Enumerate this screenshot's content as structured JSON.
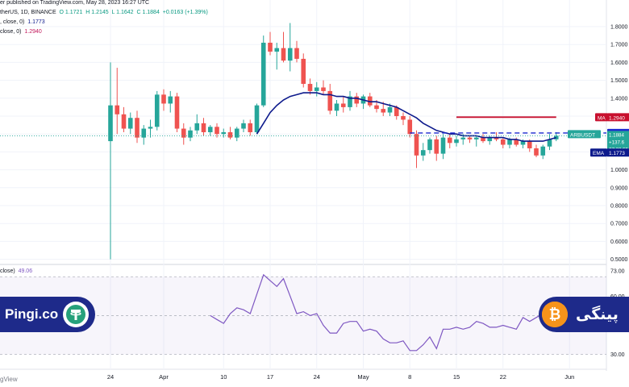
{
  "header": {
    "published_text": "er published on TradingView.com, May 28, 2023 16:27 UTC",
    "symbol_text": "therUS, 1D, BINANCE",
    "ohlc": {
      "o": "O 1.1721",
      "h": "H 1.2145",
      "l": "L 1.1642",
      "c": "C 1.1884",
      "chg": "+0.0163 (+1.39%)"
    },
    "ema_legend": ", close, 0)",
    "ema_value": "1.1773",
    "ma_legend": "close, 0)",
    "ma_value": "1.2940",
    "rsi_legend": "close)",
    "rsi_value": "49.06"
  },
  "brand": {
    "left_text": "Pingi.co",
    "right_text": "پینگی",
    "colors": {
      "brand_blue": "#1e2a8a",
      "tether": "#26a17b",
      "bitcoin": "#f7931a"
    }
  },
  "footer": {
    "text": "gView"
  },
  "colors": {
    "up": "#26a69a",
    "down": "#ef5350",
    "ema": "#0d1a8c",
    "ma": "#c8102e",
    "rsi": "#7e57c2",
    "price_line": "#1e2ad0"
  },
  "chart_data": [
    {
      "type": "candlestick",
      "title": "ARBUSDT, 1D, BINANCE",
      "ylim": [
        0.45,
        1.86
      ],
      "y_ticks": [
        "1.8000",
        "1.7000",
        "1.6000",
        "1.5000",
        "1.4000",
        "1.3000",
        "1.2000",
        "1.1000",
        "1.0000",
        "0.9000",
        "0.8000",
        "0.7000",
        "0.6000",
        "0.5000"
      ],
      "x_ticks": [
        {
          "label": "24",
          "index": 0
        },
        {
          "label": "Apr",
          "index": 8
        },
        {
          "label": "10",
          "index": 17
        },
        {
          "label": "17",
          "index": 24
        },
        {
          "label": "24",
          "index": 31
        },
        {
          "label": "May",
          "index": 38
        },
        {
          "label": "8",
          "index": 45
        },
        {
          "label": "15",
          "index": 52
        },
        {
          "label": "22",
          "index": 59
        },
        {
          "label": "Jun",
          "index": 69
        }
      ],
      "candles": [
        [
          1.16,
          1.6,
          0.5,
          1.36
        ],
        [
          1.36,
          1.57,
          1.2,
          1.31
        ],
        [
          1.31,
          1.35,
          1.21,
          1.23
        ],
        [
          1.23,
          1.32,
          1.2,
          1.29
        ],
        [
          1.29,
          1.33,
          1.15,
          1.18
        ],
        [
          1.18,
          1.25,
          1.14,
          1.23
        ],
        [
          1.23,
          1.28,
          1.18,
          1.24
        ],
        [
          1.24,
          1.44,
          1.22,
          1.42
        ],
        [
          1.42,
          1.45,
          1.33,
          1.37
        ],
        [
          1.37,
          1.44,
          1.32,
          1.41
        ],
        [
          1.41,
          1.43,
          1.21,
          1.23
        ],
        [
          1.23,
          1.26,
          1.14,
          1.18
        ],
        [
          1.18,
          1.24,
          1.16,
          1.22
        ],
        [
          1.22,
          1.31,
          1.2,
          1.26
        ],
        [
          1.26,
          1.29,
          1.19,
          1.21
        ],
        [
          1.21,
          1.25,
          1.19,
          1.24
        ],
        [
          1.24,
          1.26,
          1.18,
          1.2
        ],
        [
          1.2,
          1.23,
          1.18,
          1.21
        ],
        [
          1.21,
          1.24,
          1.17,
          1.18
        ],
        [
          1.18,
          1.24,
          1.16,
          1.23
        ],
        [
          1.23,
          1.28,
          1.21,
          1.26
        ],
        [
          1.26,
          1.28,
          1.19,
          1.21
        ],
        [
          1.21,
          1.37,
          1.2,
          1.36
        ],
        [
          1.36,
          1.75,
          1.35,
          1.71
        ],
        [
          1.71,
          1.77,
          1.64,
          1.66
        ],
        [
          1.66,
          1.71,
          1.56,
          1.68
        ],
        [
          1.68,
          1.77,
          1.6,
          1.61
        ],
        [
          1.61,
          1.82,
          1.55,
          1.68
        ],
        [
          1.68,
          1.72,
          1.6,
          1.62
        ],
        [
          1.62,
          1.65,
          1.46,
          1.48
        ],
        [
          1.48,
          1.51,
          1.42,
          1.44
        ],
        [
          1.44,
          1.49,
          1.41,
          1.46
        ],
        [
          1.46,
          1.5,
          1.42,
          1.44
        ],
        [
          1.44,
          1.48,
          1.31,
          1.33
        ],
        [
          1.33,
          1.39,
          1.3,
          1.37
        ],
        [
          1.37,
          1.41,
          1.32,
          1.35
        ],
        [
          1.35,
          1.44,
          1.33,
          1.41
        ],
        [
          1.41,
          1.43,
          1.35,
          1.37
        ],
        [
          1.37,
          1.42,
          1.34,
          1.41
        ],
        [
          1.41,
          1.43,
          1.35,
          1.36
        ],
        [
          1.36,
          1.39,
          1.32,
          1.34
        ],
        [
          1.34,
          1.38,
          1.3,
          1.32
        ],
        [
          1.32,
          1.37,
          1.3,
          1.35
        ],
        [
          1.35,
          1.36,
          1.28,
          1.3
        ],
        [
          1.3,
          1.32,
          1.25,
          1.28
        ],
        [
          1.28,
          1.3,
          1.18,
          1.2
        ],
        [
          1.2,
          1.22,
          1.01,
          1.08
        ],
        [
          1.08,
          1.15,
          1.05,
          1.11
        ],
        [
          1.11,
          1.18,
          1.09,
          1.17
        ],
        [
          1.17,
          1.19,
          1.05,
          1.09
        ],
        [
          1.09,
          1.2,
          1.06,
          1.18
        ],
        [
          1.18,
          1.2,
          1.12,
          1.15
        ],
        [
          1.15,
          1.19,
          1.13,
          1.17
        ],
        [
          1.17,
          1.2,
          1.14,
          1.18
        ],
        [
          1.18,
          1.19,
          1.15,
          1.17
        ],
        [
          1.17,
          1.19,
          1.13,
          1.18
        ],
        [
          1.18,
          1.2,
          1.15,
          1.16
        ],
        [
          1.16,
          1.19,
          1.14,
          1.18
        ],
        [
          1.18,
          1.21,
          1.16,
          1.17
        ],
        [
          1.17,
          1.18,
          1.12,
          1.14
        ],
        [
          1.14,
          1.18,
          1.12,
          1.17
        ],
        [
          1.17,
          1.18,
          1.13,
          1.14
        ],
        [
          1.14,
          1.17,
          1.12,
          1.16
        ],
        [
          1.16,
          1.17,
          1.1,
          1.12
        ],
        [
          1.12,
          1.14,
          1.07,
          1.08
        ],
        [
          1.08,
          1.14,
          1.06,
          1.13
        ],
        [
          1.13,
          1.2,
          1.11,
          1.17
        ],
        [
          1.17,
          1.21,
          1.16,
          1.19
        ]
      ],
      "ema": {
        "name": "EMA",
        "label": "EMA",
        "value_text": "1.1773",
        "start_index": 22,
        "values": [
          1.2,
          1.26,
          1.32,
          1.36,
          1.39,
          1.41,
          1.42,
          1.43,
          1.43,
          1.43,
          1.42,
          1.42,
          1.41,
          1.41,
          1.4,
          1.4,
          1.39,
          1.38,
          1.38,
          1.37,
          1.36,
          1.35,
          1.33,
          1.31,
          1.29,
          1.26,
          1.24,
          1.22,
          1.21,
          1.2,
          1.2,
          1.19,
          1.19,
          1.19,
          1.18,
          1.18,
          1.18,
          1.18,
          1.17,
          1.17,
          1.16,
          1.16,
          1.16,
          1.16,
          1.17,
          1.18
        ]
      },
      "ma": {
        "name": "MA",
        "label": "MA",
        "value_text": "1.2940",
        "start_index": 52,
        "end_index": 67,
        "value": 1.294
      },
      "price_line": {
        "value": 1.2058,
        "label": "1.2058",
        "start_index": 45
      },
      "last_price": {
        "symbol": "ARBUSDT",
        "price": "1.1884",
        "change": "+137.6",
        "countdown": "07:32:55"
      }
    },
    {
      "type": "line",
      "title": "RSI",
      "ylim": [
        28,
        75
      ],
      "y_ticks": [
        "73.00",
        "60.00",
        "30.00"
      ],
      "levels": [
        70,
        50,
        30
      ],
      "start_index": 15,
      "values": [
        50,
        48,
        46,
        51,
        54,
        53,
        51,
        61,
        71,
        68,
        65,
        69,
        60,
        51,
        52,
        50,
        51,
        45,
        41,
        41,
        46,
        47,
        47,
        42,
        43,
        42,
        38,
        36,
        36,
        37,
        32,
        32,
        35,
        39,
        33,
        43,
        43,
        44,
        43,
        44,
        47,
        46,
        44,
        44,
        45,
        44,
        43,
        49,
        47,
        49,
        51
      ]
    }
  ],
  "labels": {
    "rsi_tag": "RSI",
    "rsi_tag_value": "49.06",
    "ma_tag": "MA",
    "ema_tag": "EMA",
    "ema_tag_value": "1.1773"
  }
}
